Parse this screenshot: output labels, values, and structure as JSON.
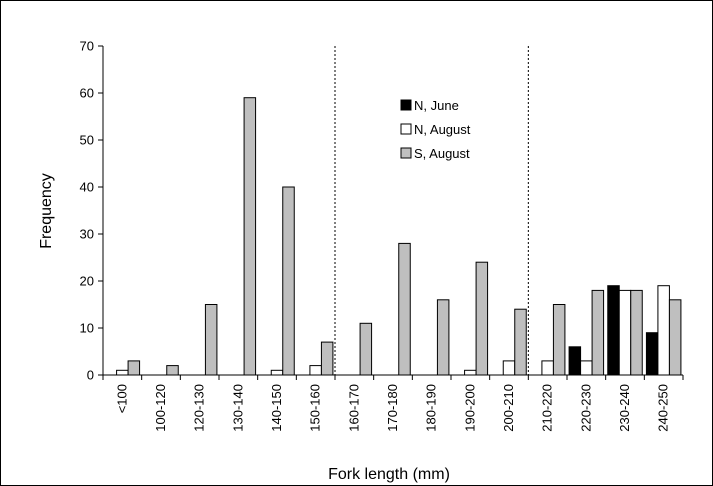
{
  "chart_data": {
    "type": "bar",
    "title": "",
    "xlabel": "Fork length (mm)",
    "ylabel": "Frequency",
    "ylim": [
      0,
      70
    ],
    "yticks": [
      0,
      10,
      20,
      30,
      40,
      50,
      60,
      70
    ],
    "grid": false,
    "legend_position": "top-center",
    "categories": [
      "<100",
      "100-120",
      "120-130",
      "130-140",
      "140-150",
      "150-160",
      "160-170",
      "170-180",
      "180-190",
      "190-200",
      "200-210",
      "210-220",
      "220-230",
      "230-240",
      "240-250"
    ],
    "series": [
      {
        "name": "N, June",
        "color": "#000000",
        "values": [
          0,
          0,
          0,
          0,
          0,
          0,
          0,
          0,
          0,
          0,
          0,
          0,
          6,
          19,
          9
        ]
      },
      {
        "name": "N, August",
        "color": "#ffffff",
        "values": [
          1,
          0,
          0,
          0,
          1,
          2,
          0,
          0,
          0,
          1,
          3,
          3,
          3,
          18,
          19
        ]
      },
      {
        "name": "S, August",
        "color": "#bfbfbf",
        "values": [
          3,
          2,
          15,
          59,
          40,
          7,
          11,
          28,
          16,
          24,
          14,
          15,
          18,
          18,
          16
        ]
      }
    ],
    "dividers_after_category": [
      "150-160",
      "200-210"
    ]
  }
}
